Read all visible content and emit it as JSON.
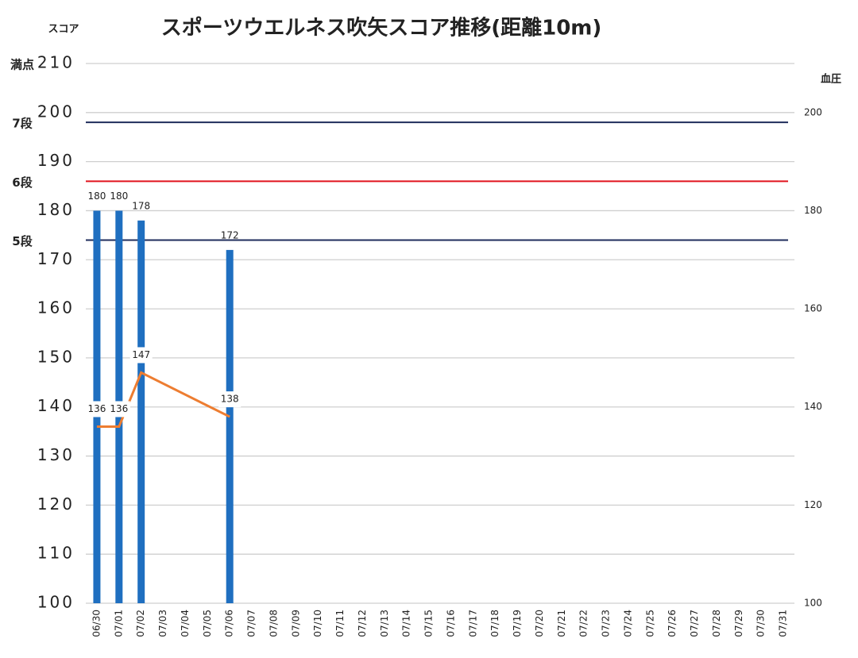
{
  "chart_data": {
    "type": "combo",
    "title": "スポーツウエルネス吹矢スコア推移(距離10m)",
    "y_label": "スコア",
    "y2_label": "血圧",
    "categories": [
      "06/30",
      "07/01",
      "07/02",
      "07/03",
      "07/04",
      "07/05",
      "07/06",
      "07/07",
      "07/08",
      "07/09",
      "07/10",
      "07/11",
      "07/12",
      "07/13",
      "07/14",
      "07/15",
      "07/16",
      "07/17",
      "07/18",
      "07/19",
      "07/20",
      "07/21",
      "07/22",
      "07/23",
      "07/24",
      "07/25",
      "07/26",
      "07/27",
      "07/28",
      "07/29",
      "07/30",
      "07/31"
    ],
    "series": [
      {
        "type": "bar",
        "color": "#1f6fc0",
        "values": [
          180,
          180,
          178,
          null,
          null,
          null,
          172,
          null,
          null,
          null,
          null,
          null,
          null,
          null,
          null,
          null,
          null,
          null,
          null,
          null,
          null,
          null,
          null,
          null,
          null,
          null,
          null,
          null,
          null,
          null,
          null,
          null
        ]
      },
      {
        "type": "line",
        "axis": "y2",
        "color": "#ed7d31",
        "connect_gaps": true,
        "values": [
          136,
          136,
          147,
          null,
          null,
          null,
          138,
          null,
          null,
          null,
          null,
          null,
          null,
          null,
          null,
          null,
          null,
          null,
          null,
          null,
          null,
          null,
          null,
          null,
          null,
          null,
          null,
          null,
          null,
          null,
          null,
          null
        ]
      }
    ],
    "ylim": [
      100,
      210
    ],
    "yticks": [
      100,
      110,
      120,
      130,
      140,
      150,
      160,
      170,
      180,
      190,
      200,
      210
    ],
    "y2lim": [
      100,
      210
    ],
    "y2ticks": [
      100,
      120,
      140,
      160,
      180,
      200
    ],
    "grid": true,
    "ref_lines": [
      {
        "value": 210,
        "label": "満点",
        "label_color": "#e0141e",
        "line_color": null
      },
      {
        "value": 198,
        "label": "7段",
        "label_color": "#000000",
        "line_color": "#1f2d5c"
      },
      {
        "value": 186,
        "label": "6段",
        "label_color": "#e0141e",
        "line_color": "#e0141e"
      },
      {
        "value": 174,
        "label": "5段",
        "label_color": "#000000",
        "line_color": "#1f2d5c"
      }
    ]
  }
}
